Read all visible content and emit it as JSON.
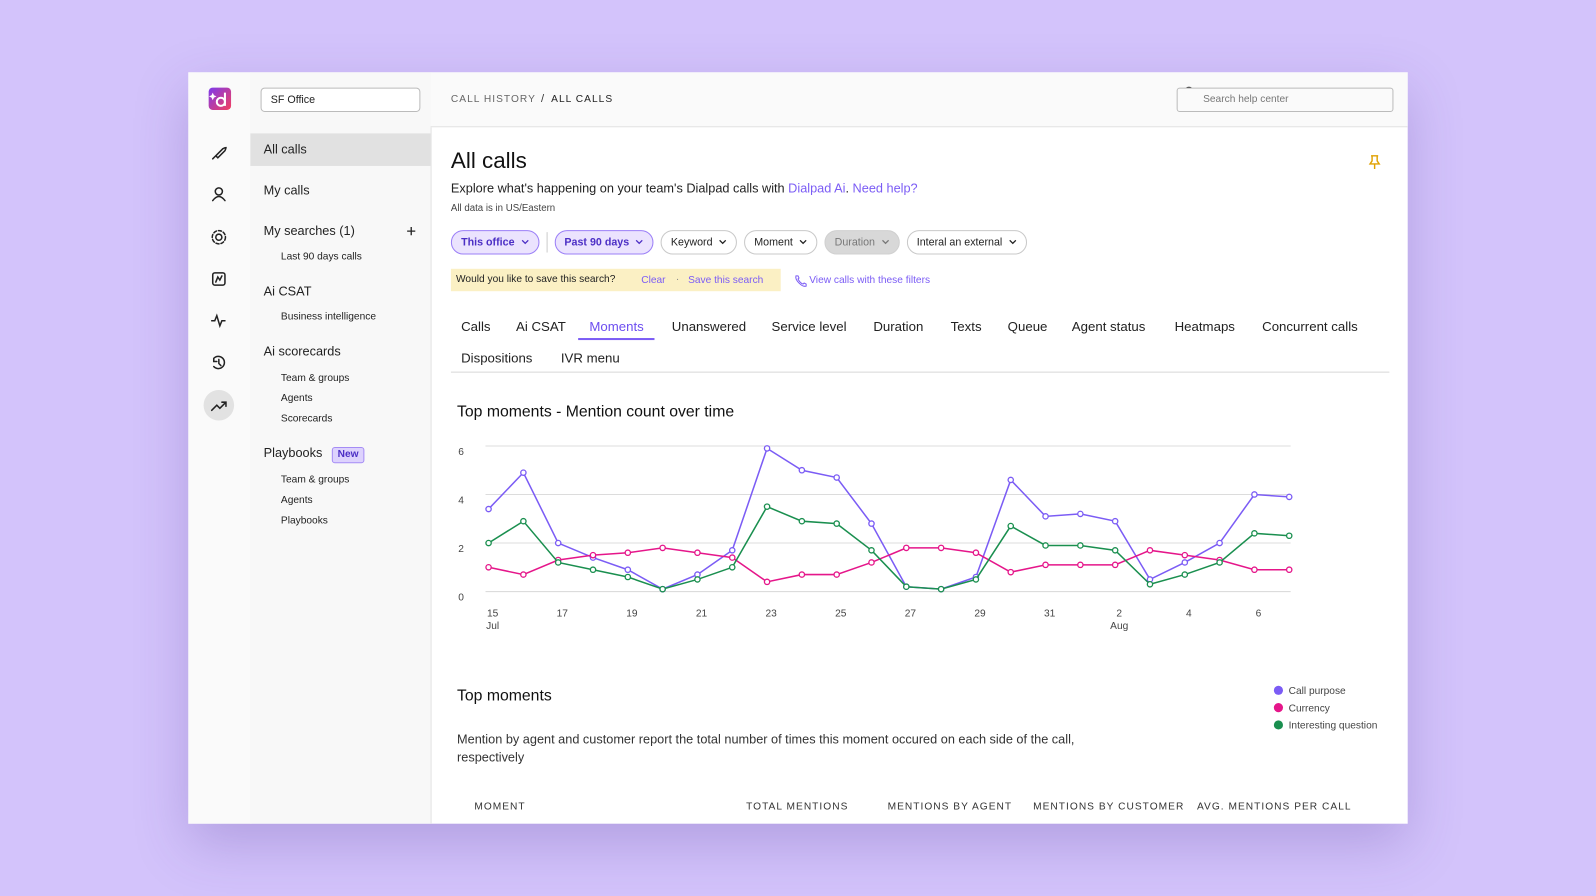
{
  "office_select": "SF Office",
  "nav": [
    {
      "label": "All calls",
      "selected": true
    },
    {
      "label": "My calls"
    },
    {
      "label": "My searches (1)",
      "children": [
        "Last 90 days calls"
      ]
    },
    {
      "label": "Ai CSAT",
      "children": [
        "Business intelligence"
      ]
    },
    {
      "label": "Ai scorecards",
      "children": [
        "Team & groups",
        "Agents",
        "Scorecards"
      ]
    },
    {
      "label": "Playbooks",
      "badge": "New",
      "children": [
        "Team & groups",
        "Agents",
        "Playbooks"
      ]
    }
  ],
  "breadcrumb": {
    "parent": "CALL HISTORY",
    "separator": "/",
    "current": "ALL CALLS"
  },
  "search_placeholder": "Search help center",
  "page": {
    "title": "All calls",
    "intro": [
      "Explore what's happening on your team's Dialpad calls with ",
      "Dialpad Ai",
      ". ",
      "Need help?"
    ],
    "timezone": "All data is in US/Eastern"
  },
  "filters": [
    {
      "label": "This office",
      "state": "active"
    },
    {
      "label": "Past 90 days",
      "state": "active"
    },
    {
      "label": "Keyword",
      "state": "default"
    },
    {
      "label": "Moment",
      "state": "default"
    },
    {
      "label": "Duration",
      "state": "disabled"
    },
    {
      "label": "Interal an external",
      "state": "default"
    }
  ],
  "save_bar": {
    "question": "Would you like to save this search?",
    "clear": "Clear",
    "dot": "·",
    "save": "Save this search"
  },
  "view_calls": "View calls with these filters",
  "tabs": [
    "Calls",
    "Ai CSAT",
    "Moments",
    "Unanswered",
    "Service level",
    "Duration",
    "Texts",
    "Queue",
    "Agent status",
    "Heatmaps",
    "Concurrent calls",
    "Dispositions",
    "IVR menu"
  ],
  "active_tab": 2,
  "chart_data": {
    "type": "line",
    "title": "Top moments - Mention count over time",
    "categories": [
      [
        "15",
        "Jul"
      ],
      null,
      [
        "17"
      ],
      null,
      [
        "19"
      ],
      null,
      [
        "21"
      ],
      null,
      [
        "23"
      ],
      null,
      [
        "25"
      ],
      null,
      [
        "27"
      ],
      null,
      [
        "29"
      ],
      null,
      [
        "31"
      ],
      null,
      [
        "2",
        "Aug"
      ],
      null,
      [
        "4"
      ],
      null,
      [
        "6"
      ],
      null
    ],
    "series": [
      {
        "name": "Call purpose",
        "color": "#7b5cf5",
        "values": [
          3.4,
          4.9,
          2.0,
          1.4,
          0.9,
          0.1,
          0.7,
          1.7,
          5.9,
          5.0,
          4.7,
          2.8,
          0.2,
          0.1,
          0.6,
          4.6,
          3.1,
          3.2,
          2.9,
          0.5,
          1.2,
          2.0,
          4.0,
          3.9
        ]
      },
      {
        "name": "Currency",
        "color": "#e5168a",
        "values": [
          1.0,
          0.7,
          1.3,
          1.5,
          1.6,
          1.8,
          1.6,
          1.4,
          0.4,
          0.7,
          0.7,
          1.2,
          1.8,
          1.8,
          1.6,
          0.8,
          1.1,
          1.1,
          1.1,
          1.7,
          1.5,
          1.3,
          0.9,
          0.9
        ]
      },
      {
        "name": "Interesting question",
        "color": "#1a8f4f",
        "values": [
          2.0,
          2.9,
          1.2,
          0.9,
          0.6,
          0.1,
          0.5,
          1.0,
          3.5,
          2.9,
          2.8,
          1.7,
          0.2,
          0.1,
          0.5,
          2.7,
          1.9,
          1.9,
          1.7,
          0.3,
          0.7,
          1.2,
          2.4,
          2.3
        ]
      }
    ],
    "ylim": [
      0,
      6
    ],
    "yticks": [
      0,
      2,
      4,
      6
    ],
    "grid": true,
    "legend": "right"
  },
  "top_moments": {
    "title": "Top moments",
    "description": "Mention by agent and customer report the total number of times this moment occured on each side of the call, respectively",
    "columns": [
      "MOMENT",
      "TOTAL MENTIONS",
      "MENTIONS BY AGENT",
      "MENTIONS BY CUSTOMER",
      "AVG. MENTIONS PER CALL"
    ]
  }
}
